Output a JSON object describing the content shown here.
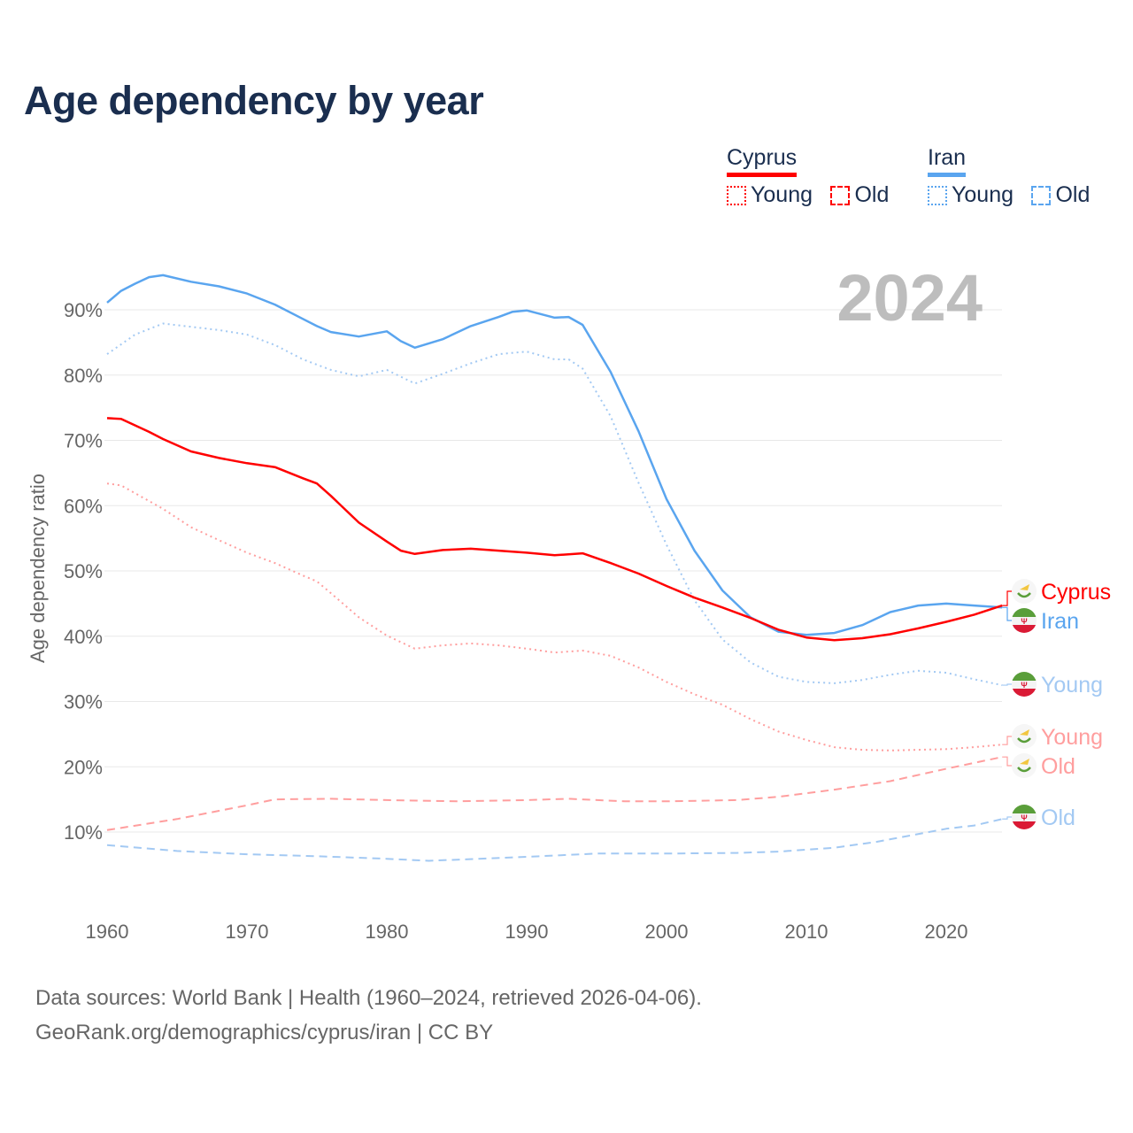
{
  "title": "Age dependency by year",
  "legend": {
    "cyprus": {
      "label": "Cyprus",
      "young": "Young",
      "old": "Old",
      "color": "#ff0000"
    },
    "iran": {
      "label": "Iran",
      "young": "Young",
      "old": "Old",
      "color": "#5aa5ef"
    }
  },
  "sources": {
    "line1": "Data sources: World Bank | Health (1960–2024, retrieved 2026-04-06).",
    "line2": "GeoRank.org/demographics/cyprus/iran | CC BY"
  },
  "chart_data": {
    "type": "line",
    "title": "Age dependency by year",
    "year_watermark": "2024",
    "xlabel": "",
    "ylabel": "Age dependency ratio",
    "xlim": [
      1960,
      2024
    ],
    "ylim": [
      0,
      95
    ],
    "x_ticks": [
      "1960",
      "1970",
      "1980",
      "1990",
      "2000",
      "2010",
      "2020"
    ],
    "y_ticks": [
      "10%",
      "20%",
      "30%",
      "40%",
      "50%",
      "60%",
      "70%",
      "80%",
      "90%"
    ],
    "grid": true,
    "series": [
      {
        "name": "Iran",
        "end_label": "Iran",
        "country": "iran",
        "style": "solid",
        "color": "#5aa5ef",
        "x": [
          1960,
          1961,
          1962,
          1963,
          1964,
          1966,
          1968,
          1970,
          1972,
          1974,
          1975,
          1976,
          1978,
          1980,
          1981,
          1982,
          1984,
          1986,
          1988,
          1989,
          1990,
          1992,
          1993,
          1994,
          1996,
          1998,
          2000,
          2002,
          2004,
          2006,
          2008,
          2010,
          2012,
          2014,
          2016,
          2018,
          2020,
          2022,
          2024
        ],
        "y": [
          91.1,
          92.9,
          94,
          95,
          95.3,
          94.3,
          93.6,
          92.5,
          90.8,
          88.6,
          87.5,
          86.6,
          85.9,
          86.7,
          85.2,
          84.2,
          85.5,
          87.5,
          88.9,
          89.7,
          89.9,
          88.8,
          88.9,
          87.7,
          80.5,
          71.4,
          61,
          53.1,
          47,
          42.9,
          40.7,
          40.2,
          40.5,
          41.7,
          43.7,
          44.7,
          45,
          44.7,
          44.4
        ]
      },
      {
        "name": "Iran Young",
        "end_label": "Young",
        "country": "iran",
        "style": "dotted",
        "color": "#a3c9f3",
        "x": [
          1960,
          1962,
          1964,
          1966,
          1968,
          1970,
          1972,
          1974,
          1976,
          1978,
          1980,
          1982,
          1984,
          1986,
          1988,
          1990,
          1992,
          1993,
          1994,
          1996,
          1998,
          2000,
          2002,
          2004,
          2006,
          2008,
          2010,
          2012,
          2014,
          2016,
          2018,
          2020,
          2022,
          2024
        ],
        "y": [
          83.2,
          86.2,
          87.9,
          87.4,
          86.9,
          86.2,
          84.6,
          82.4,
          80.8,
          79.8,
          80.8,
          78.7,
          80.2,
          81.8,
          83.2,
          83.6,
          82.4,
          82.4,
          81,
          73.7,
          63.5,
          54,
          45.5,
          39.5,
          36,
          33.8,
          33,
          32.8,
          33.3,
          34.1,
          34.7,
          34.4,
          33.4,
          32.5
        ]
      },
      {
        "name": "Iran Old",
        "end_label": "Old",
        "country": "iran",
        "style": "dashed",
        "color": "#a3c9f3",
        "x": [
          1960,
          1965,
          1970,
          1975,
          1980,
          1983,
          1990,
          1995,
          2000,
          2005,
          2008,
          2012,
          2015,
          2020,
          2022,
          2024
        ],
        "y": [
          8,
          7.1,
          6.6,
          6.3,
          5.9,
          5.6,
          6.2,
          6.7,
          6.7,
          6.8,
          7,
          7.6,
          8.5,
          10.5,
          11,
          12
        ]
      },
      {
        "name": "Cyprus",
        "end_label": "Cyprus",
        "country": "cyprus",
        "style": "solid",
        "color": "#ff0000",
        "x": [
          1960,
          1961,
          1963,
          1964,
          1966,
          1968,
          1970,
          1972,
          1974,
          1975,
          1976,
          1978,
          1980,
          1981,
          1982,
          1984,
          1986,
          1988,
          1990,
          1992,
          1994,
          1996,
          1998,
          2000,
          2002,
          2004,
          2006,
          2008,
          2010,
          2012,
          2014,
          2016,
          2018,
          2020,
          2022,
          2024
        ],
        "y": [
          73.4,
          73.3,
          71.3,
          70.2,
          68.3,
          67.3,
          66.5,
          65.9,
          64.2,
          63.4,
          61.5,
          57.4,
          54.5,
          53.1,
          52.6,
          53.2,
          53.4,
          53.1,
          52.8,
          52.4,
          52.7,
          51.2,
          49.6,
          47.7,
          45.9,
          44.4,
          42.8,
          41,
          39.8,
          39.4,
          39.7,
          40.3,
          41.2,
          42.2,
          43.3,
          44.7
        ]
      },
      {
        "name": "Cyprus Young",
        "end_label": "Young",
        "country": "cyprus",
        "style": "dotted",
        "color": "#ff9e9e",
        "x": [
          1960,
          1961,
          1962,
          1964,
          1966,
          1968,
          1970,
          1972,
          1974,
          1975,
          1976,
          1978,
          1980,
          1982,
          1984,
          1986,
          1988,
          1990,
          1992,
          1994,
          1996,
          1998,
          2000,
          2002,
          2004,
          2006,
          2008,
          2010,
          2012,
          2014,
          2016,
          2018,
          2020,
          2022,
          2024
        ],
        "y": [
          63.4,
          63.1,
          61.9,
          59.5,
          56.7,
          54.7,
          52.8,
          51.2,
          49.3,
          48.4,
          46.6,
          42.9,
          40.1,
          38.1,
          38.6,
          38.9,
          38.6,
          38.1,
          37.5,
          37.8,
          37,
          35.2,
          33,
          31.1,
          29.5,
          27.3,
          25.4,
          24.1,
          23,
          22.6,
          22.5,
          22.6,
          22.7,
          23,
          23.4
        ]
      },
      {
        "name": "Cyprus Old",
        "end_label": "Old",
        "country": "cyprus",
        "style": "dashed",
        "color": "#ff9e9e",
        "x": [
          1960,
          1965,
          1970,
          1972,
          1976,
          1980,
          1985,
          1990,
          1993,
          1997,
          2000,
          2005,
          2008,
          2012,
          2016,
          2020,
          2024
        ],
        "y": [
          10.3,
          12,
          14.1,
          15,
          15.1,
          14.9,
          14.7,
          14.9,
          15.1,
          14.7,
          14.7,
          14.9,
          15.4,
          16.5,
          17.8,
          19.7,
          21.5
        ]
      }
    ]
  }
}
